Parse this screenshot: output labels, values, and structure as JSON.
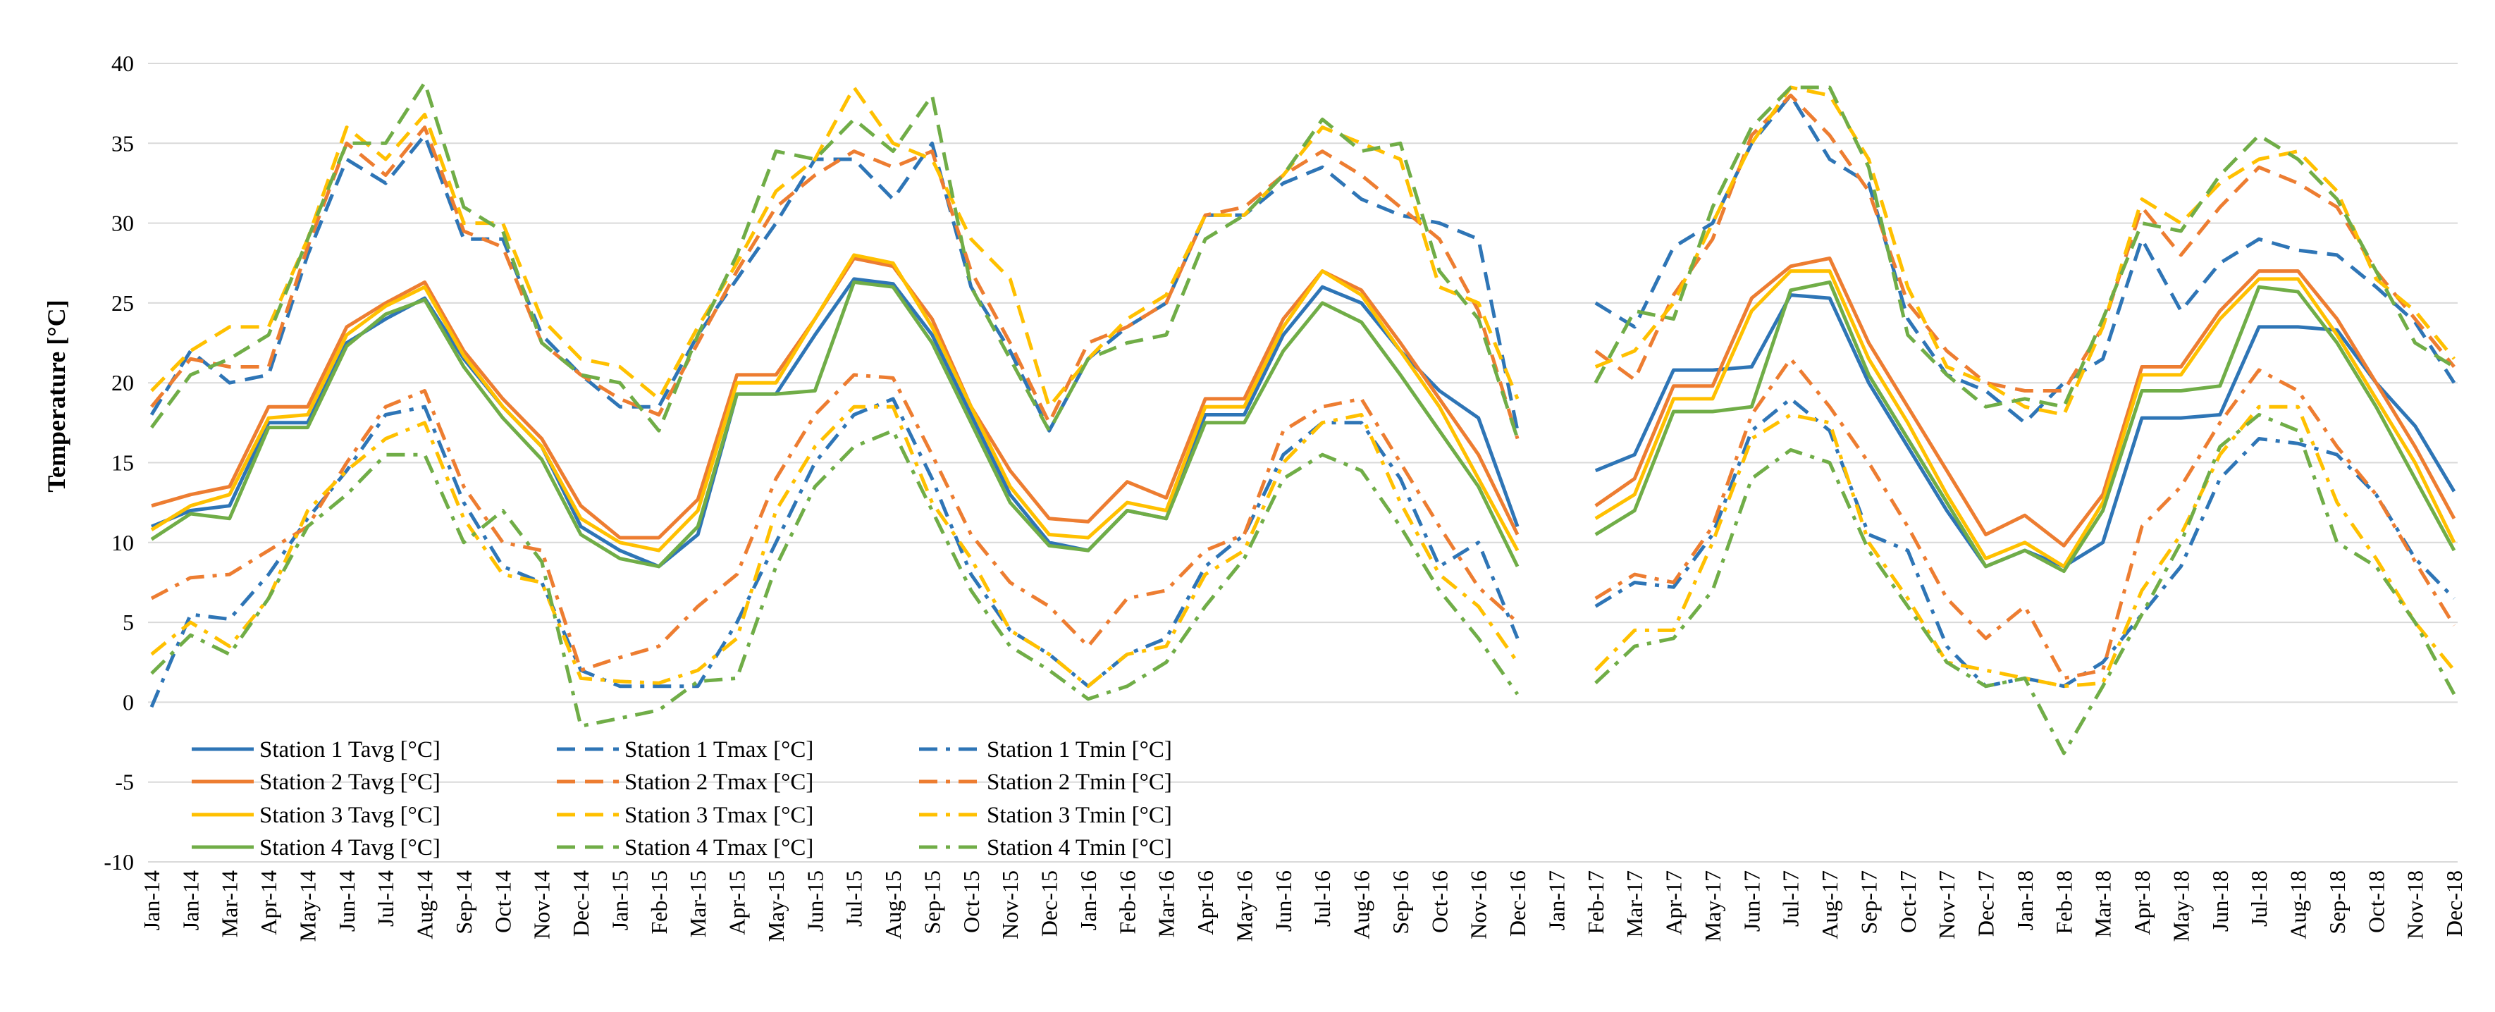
{
  "chart_data": {
    "type": "line",
    "title": "",
    "ylabel": "Temperature [°C]",
    "xlabel": "",
    "ylim": [
      -10,
      40
    ],
    "yticks": [
      40,
      35,
      30,
      25,
      20,
      15,
      10,
      5,
      0,
      -5,
      -10
    ],
    "grid": true,
    "legend_position": "bottom-left",
    "categories": [
      "Jan-14",
      "Jan-14",
      "Mar-14",
      "Apr-14",
      "May-14",
      "Jun-14",
      "Jul-14",
      "Aug-14",
      "Sep-14",
      "Oct-14",
      "Nov-14",
      "Dec-14",
      "Jan-15",
      "Feb-15",
      "Mar-15",
      "Apr-15",
      "May-15",
      "Jun-15",
      "Jul-15",
      "Aug-15",
      "Sep-15",
      "Oct-15",
      "Nov-15",
      "Dec-15",
      "Jan-16",
      "Feb-16",
      "Mar-16",
      "Apr-16",
      "May-16",
      "Jun-16",
      "Jul-16",
      "Aug-16",
      "Sep-16",
      "Oct-16",
      "Nov-16",
      "Dec-16",
      "Jan-17",
      "Feb-17",
      "Mar-17",
      "Apr-17",
      "May-17",
      "Jun-17",
      "Jul-17",
      "Aug-17",
      "Sep-17",
      "Oct-17",
      "Nov-17",
      "Dec-17",
      "Jan-18",
      "Feb-18",
      "Mar-18",
      "Apr-18",
      "May-18",
      "Jun-18",
      "Jul-18",
      "Aug-18",
      "Sep-18",
      "Oct-18",
      "Nov-18",
      "Dec-18"
    ],
    "series": [
      {
        "name": "Station 1 Tavg [°C]",
        "color": "#2E75B6",
        "dash": "solid",
        "values": [
          11,
          12,
          12.3,
          17.5,
          17.5,
          22.5,
          24,
          25.3,
          21.5,
          18.5,
          16,
          11,
          9.5,
          8.5,
          10.5,
          19.3,
          19.3,
          23,
          26.5,
          26.2,
          23,
          18,
          13,
          10,
          9.5,
          12,
          11.5,
          18,
          18,
          23,
          26,
          25,
          22,
          19.5,
          17.8,
          11,
          null,
          14.5,
          15.5,
          20.8,
          20.8,
          21,
          25.5,
          25.3,
          20,
          16,
          12,
          8.5,
          9.5,
          8.5,
          10,
          17.8,
          17.8,
          18,
          23.5,
          23.5,
          23.3,
          20,
          17.3,
          13.2
        ]
      },
      {
        "name": "Station 2 Tavg [°C]",
        "color": "#ED7D31",
        "dash": "solid",
        "values": [
          12.3,
          13,
          13.5,
          18.5,
          18.5,
          23.5,
          25,
          26.3,
          22,
          19,
          16.5,
          12.3,
          10.3,
          10.3,
          12.7,
          20.5,
          20.5,
          24,
          27.8,
          27.3,
          24,
          18.5,
          14.5,
          11.5,
          11.3,
          13.8,
          12.8,
          19,
          19,
          24,
          27,
          25.8,
          22.5,
          19,
          15.5,
          10.5,
          null,
          12.3,
          14,
          19.8,
          19.8,
          25.3,
          27.3,
          27.8,
          22.5,
          18.5,
          14.5,
          10.5,
          11.7,
          9.8,
          13,
          21,
          21,
          24.5,
          27,
          27,
          24,
          20,
          16,
          11.5
        ]
      },
      {
        "name": "Station 3 Tavg [°C]",
        "color": "#FFC000",
        "dash": "solid",
        "values": [
          10.8,
          12.3,
          13,
          17.8,
          18,
          23,
          24.8,
          26,
          21.7,
          18.5,
          16,
          11.5,
          10,
          9.5,
          12,
          20,
          20,
          24,
          28,
          27.5,
          23.5,
          18.5,
          13.5,
          10.5,
          10.3,
          12.5,
          12,
          18.5,
          18.5,
          23.5,
          27,
          25.5,
          22,
          18.5,
          14,
          9.5,
          null,
          11.5,
          13,
          19,
          19,
          24.5,
          27,
          27,
          21.5,
          17.5,
          13,
          9,
          10,
          8.5,
          12.5,
          20.5,
          20.5,
          24,
          26.5,
          26.5,
          23,
          19,
          15,
          10
        ]
      },
      {
        "name": "Station 4 Tavg [°C]",
        "color": "#70AD47",
        "dash": "solid",
        "values": [
          10.2,
          11.8,
          11.5,
          17.2,
          17.2,
          22.3,
          24.3,
          25.2,
          21,
          17.8,
          15.2,
          10.5,
          9,
          8.5,
          11,
          19.3,
          19.3,
          19.5,
          26.3,
          26,
          22.5,
          17.5,
          12.5,
          9.8,
          9.5,
          12,
          11.5,
          17.5,
          17.5,
          22,
          25,
          23.8,
          20.5,
          17,
          13.5,
          8.5,
          null,
          10.5,
          12,
          18.2,
          18.2,
          18.5,
          25.8,
          26.3,
          20.5,
          16.5,
          12.5,
          8.5,
          9.5,
          8.2,
          12,
          19.5,
          19.5,
          19.8,
          26,
          25.7,
          22.5,
          18.5,
          14,
          9.5
        ]
      },
      {
        "name": "Station 1 Tmax [°C]",
        "color": "#2E75B6",
        "dash": "dash",
        "values": [
          18,
          22,
          20,
          20.5,
          28,
          34,
          32.5,
          35.5,
          29,
          29,
          23,
          20.5,
          18.5,
          18.5,
          23,
          26.5,
          30,
          34,
          34,
          31.5,
          35,
          26,
          22,
          17,
          21.5,
          23.5,
          25,
          30.5,
          30.5,
          32.5,
          33.5,
          31.5,
          30.5,
          30,
          29,
          17,
          null,
          25,
          23.5,
          28.5,
          30,
          35,
          38,
          34,
          32.5,
          24,
          20.5,
          19.5,
          17.5,
          20,
          21.5,
          29,
          24.5,
          27.5,
          29,
          28.3,
          28,
          26,
          23.8,
          20
        ]
      },
      {
        "name": "Station 2 Tmax [°C]",
        "color": "#ED7D31",
        "dash": "dash",
        "values": [
          18.5,
          21.5,
          21,
          21,
          28.5,
          35,
          33,
          36,
          29.5,
          28.5,
          22.5,
          20.5,
          19,
          18,
          22.5,
          27,
          31,
          33,
          34.5,
          33.5,
          34.5,
          27,
          22.5,
          17.5,
          22.5,
          23.5,
          25,
          30.5,
          31,
          33,
          34.5,
          33,
          31,
          29,
          24.5,
          16.5,
          null,
          22,
          20.2,
          25.5,
          29,
          35.5,
          38,
          35.5,
          32,
          25,
          22,
          20,
          19.5,
          19.5,
          23.5,
          31,
          28,
          31,
          33.5,
          32.5,
          31,
          27,
          24,
          21
        ]
      },
      {
        "name": "Station 3 Tmax [°C]",
        "color": "#FFC000",
        "dash": "dash",
        "values": [
          19.5,
          22,
          23.5,
          23.5,
          29,
          36,
          34,
          36.8,
          30,
          30,
          24,
          21.5,
          21,
          19,
          23.5,
          27.5,
          32,
          34,
          38.5,
          35,
          34,
          29,
          26.5,
          18.5,
          21.5,
          24,
          25.5,
          30.5,
          30.5,
          33,
          36,
          35,
          34,
          26,
          25,
          19,
          null,
          21,
          22,
          25,
          30,
          35,
          38.5,
          38,
          34,
          26,
          21,
          20,
          18.5,
          18,
          23.5,
          31.5,
          30,
          32.5,
          34,
          34.5,
          32,
          26.5,
          24.5,
          21.5
        ]
      },
      {
        "name": "Station 4 Tmax [°C]",
        "color": "#70AD47",
        "dash": "dash",
        "values": [
          17.2,
          20.5,
          21.5,
          23,
          29,
          35,
          35,
          38.8,
          31,
          29.5,
          22.5,
          20.5,
          20,
          17,
          23,
          28,
          34.5,
          34,
          36.5,
          34.5,
          38,
          26,
          21.5,
          17,
          21.5,
          22.5,
          23,
          29,
          30.5,
          33,
          36.5,
          34.5,
          35,
          27,
          24,
          16.5,
          null,
          20,
          24.5,
          24,
          31,
          36,
          38.5,
          38.5,
          33.5,
          23,
          20.5,
          18.5,
          19,
          18.5,
          24,
          30,
          29.5,
          33,
          35.5,
          34,
          31.5,
          27,
          22.5,
          21
        ]
      },
      {
        "name": "Station 1 Tmin [°C]",
        "color": "#2E75B6",
        "dash": "dashdot",
        "values": [
          -0.3,
          5.5,
          5.2,
          8,
          11.5,
          14.5,
          18,
          18.5,
          12.5,
          8.5,
          7.5,
          2,
          1,
          1,
          1,
          5,
          10,
          15,
          18,
          19,
          14,
          8,
          4.5,
          3,
          1,
          3,
          4,
          8.5,
          10.5,
          15.5,
          17.5,
          17.5,
          14,
          8.5,
          10,
          4,
          null,
          6,
          7.5,
          7.2,
          10.5,
          17,
          19,
          17,
          10.5,
          9.5,
          3.5,
          1,
          1.5,
          1,
          2.5,
          5.5,
          8.5,
          14,
          16.5,
          16.2,
          15.5,
          13,
          9,
          6.5
        ]
      },
      {
        "name": "Station 2 Tmin [°C]",
        "color": "#ED7D31",
        "dash": "dashdot",
        "values": [
          6.5,
          7.8,
          8,
          9.5,
          11,
          15,
          18.5,
          19.5,
          13.5,
          10,
          9.5,
          2,
          2.8,
          3.5,
          6,
          8,
          14,
          18,
          20.5,
          20.3,
          15.5,
          10.5,
          7.5,
          6,
          3.5,
          6.5,
          7,
          9.5,
          10.5,
          17,
          18.5,
          19,
          15,
          11,
          7.2,
          5,
          null,
          6.5,
          8,
          7.5,
          11,
          18,
          21.5,
          18.5,
          15,
          11,
          6.5,
          4,
          6,
          1.5,
          2,
          11,
          13.5,
          17.5,
          20.8,
          19.5,
          16,
          13,
          8.8,
          4.8
        ]
      },
      {
        "name": "Station 3 Tmin [°C]",
        "color": "#FFC000",
        "dash": "dashdot",
        "values": [
          3,
          5,
          3.5,
          6.5,
          12,
          14.5,
          16.5,
          17.5,
          11.5,
          8,
          7.5,
          1.5,
          1.3,
          1.2,
          2,
          4,
          12,
          16,
          18.5,
          18.5,
          12.5,
          9,
          4.5,
          3,
          1,
          3,
          3.5,
          8,
          9.5,
          15,
          17.5,
          18,
          12.5,
          8,
          6,
          2.5,
          null,
          2,
          4.5,
          4.5,
          10,
          16.5,
          18,
          17.5,
          10,
          6.5,
          2.5,
          2,
          1.5,
          1,
          1.2,
          7,
          10.5,
          15.5,
          18.5,
          18.5,
          12.5,
          9,
          5,
          2
        ]
      },
      {
        "name": "Station 4 Tmin [°C]",
        "color": "#70AD47",
        "dash": "dashdot",
        "values": [
          1.8,
          4.2,
          3,
          6.5,
          11,
          13,
          15.5,
          15.5,
          10,
          12,
          8.8,
          -1.5,
          -1,
          -0.5,
          1.3,
          1.5,
          8.5,
          13.5,
          16,
          17,
          12,
          7,
          3.5,
          2,
          0.2,
          1,
          2.5,
          6,
          9,
          14,
          15.5,
          14.5,
          11,
          7,
          4,
          0.5,
          null,
          1.2,
          3.5,
          4,
          7,
          14,
          15.8,
          15,
          9.5,
          6,
          2.5,
          1,
          1.5,
          -3.2,
          1,
          5.5,
          10,
          16,
          18,
          17,
          10,
          8.5,
          5,
          0.5
        ]
      }
    ]
  }
}
